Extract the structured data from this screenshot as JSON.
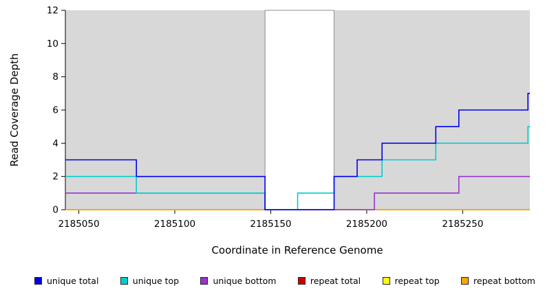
{
  "chart_data": {
    "type": "line",
    "subtype": "step",
    "title": "",
    "xlabel": "Coordinate in Reference Genome",
    "ylabel": "Read Coverage Depth",
    "xlim": [
      2185043,
      2185285
    ],
    "ylim": [
      0,
      12
    ],
    "x_ticks": [
      2185050,
      2185100,
      2185150,
      2185200,
      2185250
    ],
    "y_ticks": [
      0,
      2,
      4,
      6,
      8,
      10,
      12
    ],
    "grid": false,
    "legend_position": "bottom",
    "plot_bg": "#d8d8d8",
    "highlight_band": {
      "x0": 2185147,
      "x1": 2185183,
      "fill": "#ffffff",
      "stroke": "#8c8c8c"
    },
    "series": [
      {
        "name": "repeat total",
        "color": "#cc0000",
        "points": [
          [
            2185043,
            0
          ]
        ]
      },
      {
        "name": "repeat top",
        "color": "#ffff00",
        "points": [
          [
            2185043,
            0
          ]
        ]
      },
      {
        "name": "repeat bottom",
        "color": "#ffa500",
        "points": [
          [
            2185043,
            0
          ]
        ]
      },
      {
        "name": "unique bottom",
        "color": "#9933cc",
        "points": [
          [
            2185043,
            1
          ],
          [
            2185147,
            0
          ],
          [
            2185204,
            1
          ],
          [
            2185248,
            2
          ]
        ]
      },
      {
        "name": "unique top",
        "color": "#00cdcd",
        "points": [
          [
            2185043,
            2
          ],
          [
            2185080,
            1
          ],
          [
            2185147,
            0
          ],
          [
            2185164,
            1
          ],
          [
            2185183,
            2
          ],
          [
            2185208,
            3
          ],
          [
            2185236,
            4
          ],
          [
            2185284,
            5
          ]
        ]
      },
      {
        "name": "unique total",
        "color": "#0000ee",
        "points": [
          [
            2185043,
            3
          ],
          [
            2185080,
            2
          ],
          [
            2185147,
            0
          ],
          [
            2185183,
            2
          ],
          [
            2185195,
            3
          ],
          [
            2185208,
            4
          ],
          [
            2185236,
            5
          ],
          [
            2185248,
            6
          ],
          [
            2185284,
            7
          ]
        ]
      }
    ],
    "legend": [
      {
        "label": "unique total",
        "color": "#0000ee"
      },
      {
        "label": "unique top",
        "color": "#00cdcd"
      },
      {
        "label": "unique bottom",
        "color": "#9933cc"
      },
      {
        "label": "repeat total",
        "color": "#cc0000"
      },
      {
        "label": "repeat top",
        "color": "#ffff00"
      },
      {
        "label": "repeat bottom",
        "color": "#ffa500"
      }
    ]
  }
}
